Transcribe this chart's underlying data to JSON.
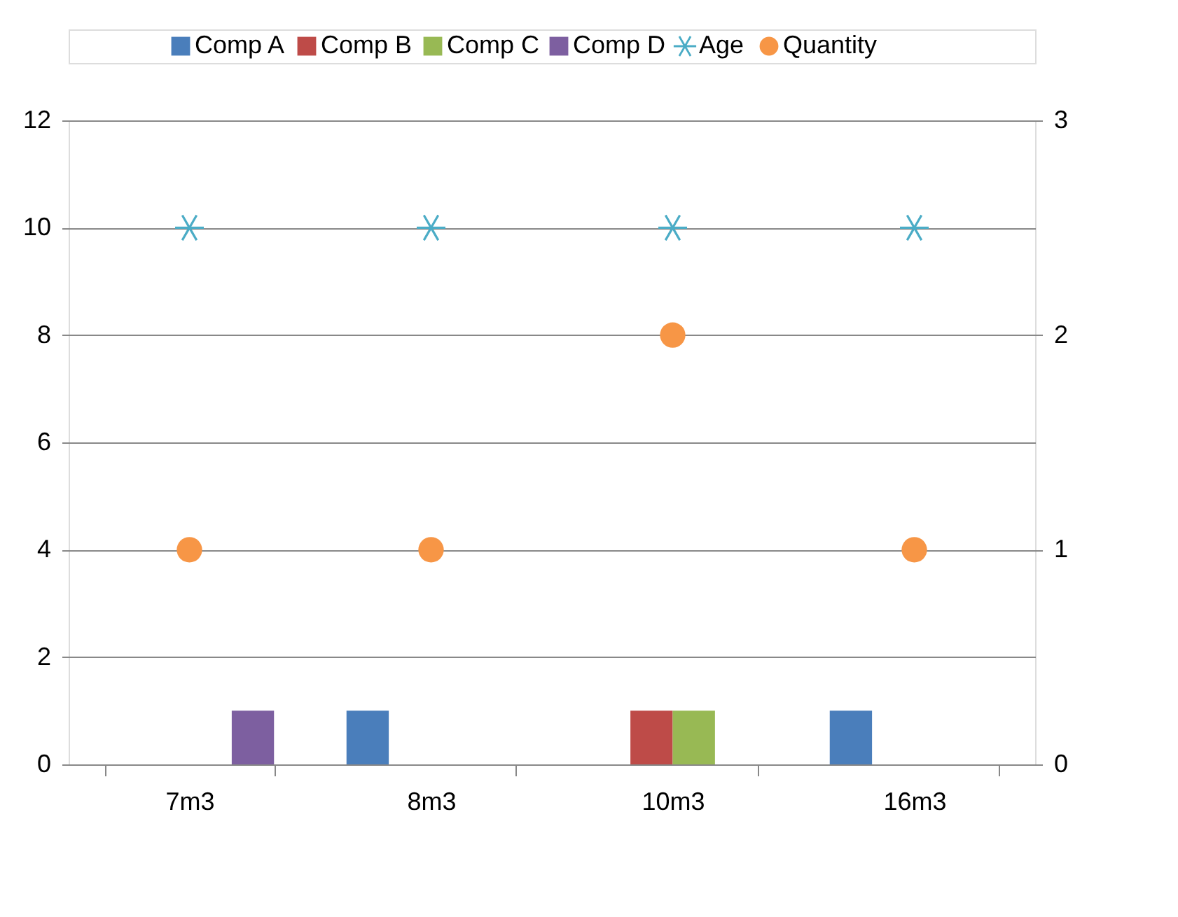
{
  "chart_data": {
    "type": "bar",
    "categories": [
      "7m3",
      "8m3",
      "10m3",
      "16m3"
    ],
    "series": [
      {
        "name": "Comp A",
        "color": "#4a7ebb",
        "values": [
          0,
          1,
          0,
          1
        ]
      },
      {
        "name": "Comp B",
        "color": "#be4b48",
        "values": [
          0,
          0,
          1,
          0
        ]
      },
      {
        "name": "Comp C",
        "color": "#98b954",
        "values": [
          0,
          0,
          1,
          0
        ]
      },
      {
        "name": "Comp D",
        "color": "#7d5fa0",
        "values": [
          1,
          0,
          0,
          0
        ]
      },
      {
        "name": "Age",
        "type": "scatter",
        "marker": "cross",
        "color": "#4bacc6",
        "values": [
          10,
          10,
          10,
          10
        ]
      },
      {
        "name": "Quantity",
        "type": "scatter",
        "marker": "circle",
        "color": "#f79646",
        "axis": "y2",
        "values": [
          1,
          1,
          2,
          1
        ]
      }
    ],
    "ylim": [
      0,
      12
    ],
    "yticks": [
      0,
      2,
      4,
      6,
      8,
      10,
      12
    ],
    "y2lim": [
      0,
      3
    ],
    "y2ticks": [
      0,
      1,
      2,
      3
    ],
    "grid": "y",
    "legend": "top"
  }
}
